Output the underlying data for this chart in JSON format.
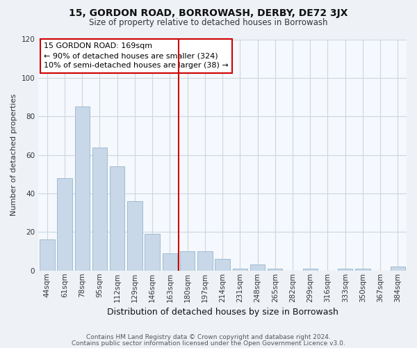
{
  "title": "15, GORDON ROAD, BORROWASH, DERBY, DE72 3JX",
  "subtitle": "Size of property relative to detached houses in Borrowash",
  "xlabel": "Distribution of detached houses by size in Borrowash",
  "ylabel": "Number of detached properties",
  "categories": [
    "44sqm",
    "61sqm",
    "78sqm",
    "95sqm",
    "112sqm",
    "129sqm",
    "146sqm",
    "163sqm",
    "180sqm",
    "197sqm",
    "214sqm",
    "231sqm",
    "248sqm",
    "265sqm",
    "282sqm",
    "299sqm",
    "316sqm",
    "333sqm",
    "350sqm",
    "367sqm",
    "384sqm"
  ],
  "values": [
    16,
    48,
    85,
    64,
    54,
    36,
    19,
    9,
    10,
    10,
    6,
    1,
    3,
    1,
    0,
    1,
    0,
    1,
    1,
    0,
    2
  ],
  "bar_color": "#c8d8e8",
  "bar_edgecolor": "#a0bcd0",
  "vline_index": 7,
  "vline_color": "#cc0000",
  "annotation_line1": "15 GORDON ROAD: 169sqm",
  "annotation_line2": "← 90% of detached houses are smaller (324)",
  "annotation_line3": "10% of semi-detached houses are larger (38) →",
  "annotation_box_color": "#cc0000",
  "annotation_box_bg": "#ffffff",
  "ylim": [
    0,
    120
  ],
  "yticks": [
    0,
    20,
    40,
    60,
    80,
    100,
    120
  ],
  "footer1": "Contains HM Land Registry data © Crown copyright and database right 2024.",
  "footer2": "Contains public sector information licensed under the Open Government Licence v3.0.",
  "bg_color": "#eef2f7",
  "plot_bg_color": "#f5f8fc",
  "grid_color": "#cdd5e0",
  "title_fontsize": 10,
  "subtitle_fontsize": 8.5,
  "annotation_fontsize": 8,
  "xlabel_fontsize": 9,
  "ylabel_fontsize": 8,
  "tick_fontsize": 7.5,
  "footer_fontsize": 6.5
}
